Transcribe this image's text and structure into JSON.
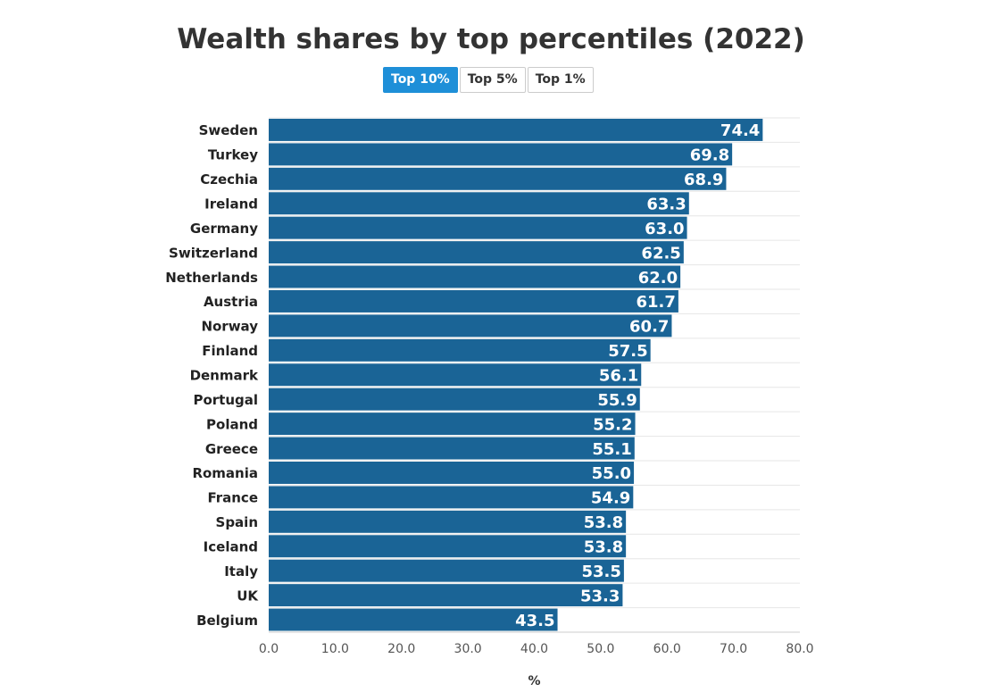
{
  "chart_data": {
    "type": "bar",
    "orientation": "horizontal",
    "title": "Wealth shares by top percentiles (2022)",
    "xlabel": "%",
    "ylabel": "",
    "xlim": [
      0,
      80
    ],
    "xticks": [
      "0.0",
      "10.0",
      "20.0",
      "30.0",
      "40.0",
      "50.0",
      "60.0",
      "70.0",
      "80.0"
    ],
    "grid": true,
    "bar_color": "#1a6496",
    "categories": [
      "Sweden",
      "Turkey",
      "Czechia",
      "Ireland",
      "Germany",
      "Switzerland",
      "Netherlands",
      "Austria",
      "Norway",
      "Finland",
      "Denmark",
      "Portugal",
      "Poland",
      "Greece",
      "Romania",
      "France",
      "Spain",
      "Iceland",
      "Italy",
      "UK",
      "Belgium"
    ],
    "values": [
      74.4,
      69.8,
      68.9,
      63.3,
      63.0,
      62.5,
      62.0,
      61.7,
      60.7,
      57.5,
      56.1,
      55.9,
      55.2,
      55.1,
      55.0,
      54.9,
      53.8,
      53.8,
      53.5,
      53.3,
      43.5
    ],
    "value_labels": [
      "74.4",
      "69.8",
      "68.9",
      "63.3",
      "63.0",
      "62.5",
      "62.0",
      "61.7",
      "60.7",
      "57.5",
      "56.1",
      "55.9",
      "55.2",
      "55.1",
      "55.0",
      "54.9",
      "53.8",
      "53.8",
      "53.5",
      "53.3",
      "43.5"
    ]
  },
  "toggles": {
    "items": [
      {
        "label": "Top 10%",
        "active": true
      },
      {
        "label": "Top 5%",
        "active": false
      },
      {
        "label": "Top 1%",
        "active": false
      }
    ],
    "active_color": "#1e8fd8"
  }
}
